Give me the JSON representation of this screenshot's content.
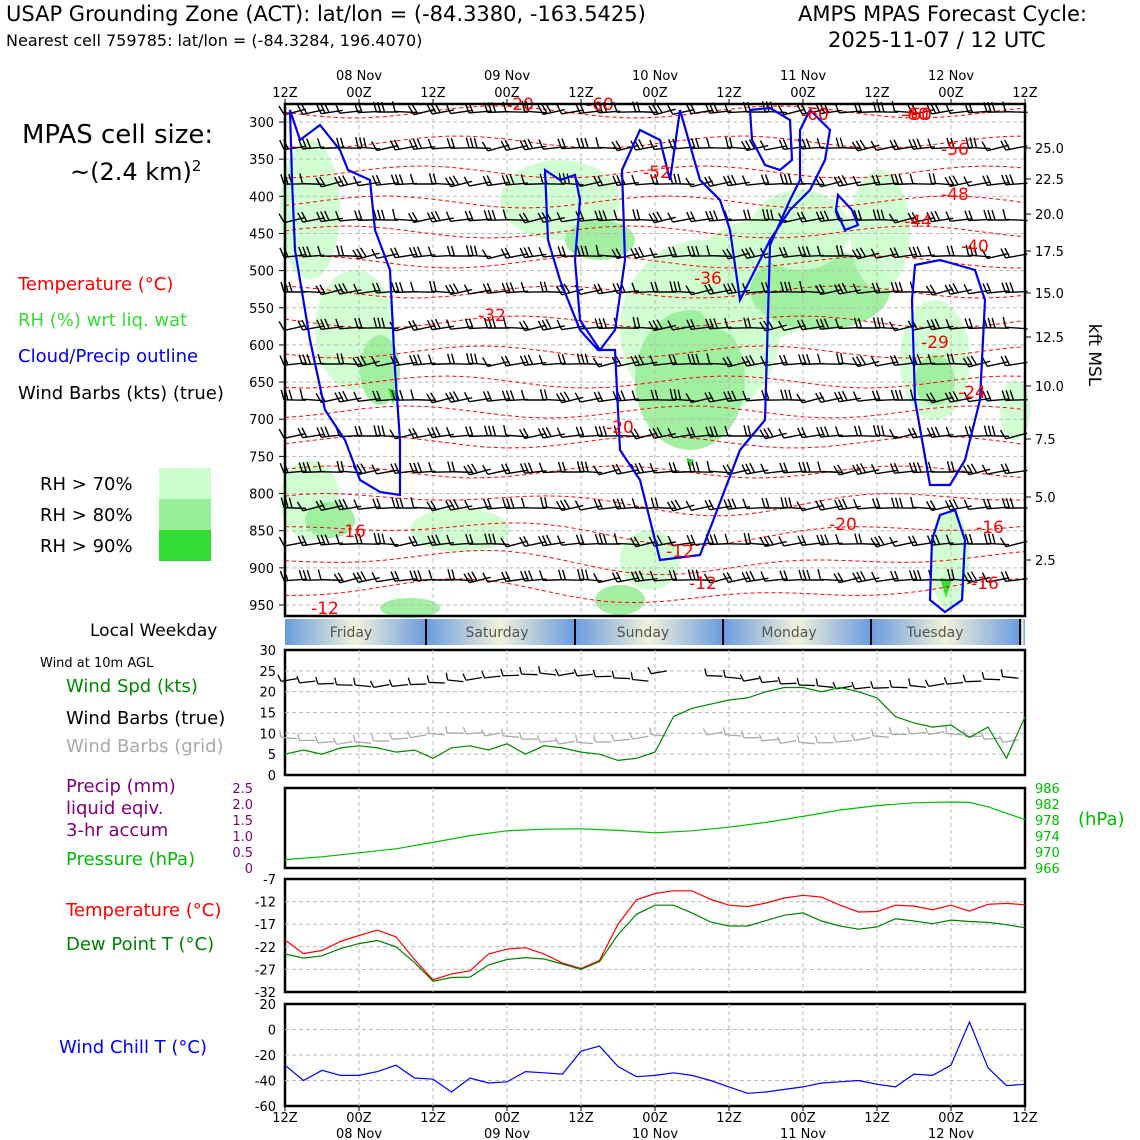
{
  "header": {
    "title_left": "USAP Grounding Zone (ACT): lat/lon = (-84.3380, -163.5425)",
    "subtitle_left": "Nearest cell 759785: lat/lon = (-84.3284, 196.4070)",
    "title_right_1": "AMPS MPAS Forecast Cycle:",
    "title_right_2": "2025-11-07 / 12 UTC"
  },
  "cell_size": {
    "line1": "MPAS cell size:",
    "line2": "~(2.4 km)",
    "sup": "2"
  },
  "legend": {
    "temperature": "Temperature (°C)",
    "rh": "RH (%) wrt liq. wat",
    "cloud": "Cloud/Precip outline",
    "wind_barbs": "Wind Barbs (kts) (true)",
    "rh70": "RH > 70%",
    "rh80": "RH > 80%",
    "rh90": "RH > 90%"
  },
  "colors": {
    "temperature": "#ff0000",
    "rh": "#33dd33",
    "cloud": "#0000ee",
    "precip": "#800080",
    "pressure": "#00bb00",
    "dewpoint": "#008000",
    "windchill": "#0000ff",
    "rh70": "#ccffcc",
    "rh80": "#99ee99",
    "rh90": "#33dd33",
    "grid_barb": "#aaaaaa"
  },
  "time_axis": {
    "ticks": [
      "12Z",
      "00Z",
      "12Z",
      "00Z",
      "12Z",
      "00Z",
      "12Z",
      "00Z",
      "12Z",
      "00Z",
      "12Z"
    ],
    "dates": [
      "08 Nov",
      "09 Nov",
      "10 Nov",
      "11 Nov",
      "12 Nov"
    ]
  },
  "weekday": {
    "label": "Local Weekday",
    "days": [
      "Friday",
      "Saturday",
      "Sunday",
      "Monday",
      "Tuesday"
    ]
  },
  "chart_data": [
    {
      "type": "heatmap",
      "name": "vertical-cross-section",
      "y_left_label": "",
      "y_left_ticks": [
        300,
        350,
        400,
        450,
        500,
        550,
        600,
        650,
        700,
        750,
        800,
        850,
        900,
        950
      ],
      "y_right_label": "kft MSL",
      "y_right_ticks": [
        "25.0",
        "22.5",
        "20.0",
        "17.5",
        "15.0",
        "12.5",
        "10.0",
        "7.5",
        "5.0",
        "2.5"
      ],
      "temperature_labels": [
        "-60",
        "-56",
        "-52",
        "-48",
        "-44",
        "-40",
        "-36",
        "-32",
        "-29",
        "-24",
        "-20",
        "-16",
        "-12",
        "-20",
        "-12",
        "-16",
        "-16",
        "-12",
        "-20",
        "-60",
        "-60",
        "-60"
      ]
    },
    {
      "type": "line",
      "name": "surface-wind",
      "title": "Wind at 10m AGL",
      "labels": [
        "Wind Spd (kts)",
        "Wind Barbs (true)",
        "Wind Barbs (grid)"
      ],
      "y_ticks": [
        "0",
        "5",
        "10",
        "15",
        "20",
        "25",
        "30"
      ],
      "ylim": [
        0,
        30
      ],
      "x": [
        0,
        3,
        6,
        9,
        12,
        15,
        18,
        21,
        24,
        27,
        30,
        33,
        36,
        39,
        42,
        45,
        48,
        51,
        54,
        57,
        60,
        63,
        66,
        69,
        72,
        75,
        78,
        81,
        84,
        87,
        90,
        93,
        96,
        99,
        102,
        105,
        108,
        111,
        114,
        117,
        120
      ],
      "series": [
        {
          "name": "Wind Spd (kts)",
          "values": [
            5,
            6,
            5,
            6.5,
            7,
            6.5,
            5.5,
            6,
            4,
            6.5,
            7,
            6,
            7.5,
            5,
            7,
            6.5,
            5.5,
            5,
            3.5,
            4,
            5.5,
            14,
            16,
            17,
            18,
            18.5,
            20,
            21,
            21,
            20,
            21,
            20,
            18.5,
            14,
            12.5,
            11.5,
            12,
            9,
            11.5,
            4,
            14
          ]
        }
      ]
    },
    {
      "type": "line",
      "name": "precip-pressure",
      "labels": [
        "Precip (mm)",
        "liquid eqiv.",
        "3-hr accum",
        "Pressure (hPa)"
      ],
      "y_left_ticks": [
        "0",
        "0.5",
        "1.0",
        "1.5",
        "2.0",
        "2.5"
      ],
      "y_right_ticks": [
        "966",
        "970",
        "974",
        "978",
        "982",
        "986"
      ],
      "y_right_unit": "(hPa)",
      "ylim_pressure": [
        966,
        986
      ],
      "x": [
        0,
        6,
        12,
        18,
        24,
        30,
        36,
        42,
        48,
        54,
        60,
        66,
        72,
        78,
        84,
        90,
        96,
        102,
        108,
        111,
        114,
        120
      ],
      "series": [
        {
          "name": "Pressure (hPa)",
          "values": [
            968.1,
            968.8,
            969.8,
            970.8,
            972.4,
            974.1,
            975.3,
            975.7,
            975.8,
            975.4,
            974.8,
            975.3,
            976.2,
            977.4,
            978.9,
            980.5,
            981.6,
            982.3,
            982.5,
            982.4,
            981.3,
            978.1
          ]
        },
        {
          "name": "Precip (mm)",
          "values": [
            0,
            0,
            0,
            0,
            0,
            0,
            0,
            0,
            0,
            0,
            0,
            0,
            0,
            0,
            0,
            0,
            0,
            0,
            0,
            0,
            0,
            0
          ]
        }
      ]
    },
    {
      "type": "line",
      "name": "temperature-dewpoint",
      "labels": [
        "Temperature (°C)",
        "Dew Point T (°C)"
      ],
      "y_ticks": [
        "-7",
        "-12",
        "-17",
        "-22",
        "-27",
        "-32"
      ],
      "ylim": [
        -32,
        -7
      ],
      "x": [
        0,
        3,
        6,
        9,
        12,
        15,
        18,
        21,
        24,
        27,
        30,
        33,
        36,
        39,
        42,
        45,
        48,
        51,
        54,
        57,
        60,
        63,
        66,
        69,
        72,
        75,
        78,
        81,
        84,
        87,
        90,
        93,
        96,
        99,
        102,
        105,
        108,
        111,
        114,
        117,
        120
      ],
      "series": [
        {
          "name": "Temperature (°C)",
          "values": [
            -20.5,
            -23.5,
            -22.8,
            -20.8,
            -19.5,
            -18.3,
            -19.8,
            -24.8,
            -29.3,
            -28,
            -27.3,
            -23.6,
            -22.5,
            -22.2,
            -23.6,
            -25.6,
            -26.8,
            -25,
            -17,
            -11.6,
            -10.2,
            -9.6,
            -9.6,
            -11.5,
            -12.8,
            -13.1,
            -12.3,
            -11.2,
            -10.6,
            -11,
            -12.8,
            -14.3,
            -14.2,
            -12.8,
            -13,
            -13.8,
            -12.8,
            -14.1,
            -12.6,
            -12.4,
            -12.7
          ]
        },
        {
          "name": "Dew Point T (°C)",
          "values": [
            -23.6,
            -24.5,
            -24,
            -22.4,
            -21.3,
            -20.6,
            -22,
            -25.5,
            -29.6,
            -28.8,
            -28.7,
            -26,
            -24.8,
            -24.4,
            -24.7,
            -25.8,
            -27,
            -25.3,
            -19.3,
            -14.8,
            -12.8,
            -12.8,
            -14.5,
            -16.5,
            -17.4,
            -17.4,
            -16.2,
            -15,
            -14.5,
            -16.3,
            -17.4,
            -18.1,
            -17.6,
            -15.8,
            -16.3,
            -16.9,
            -16.1,
            -16.4,
            -16.6,
            -17.1,
            -17.8
          ]
        }
      ]
    },
    {
      "type": "line",
      "name": "wind-chill",
      "labels": [
        "Wind Chill T (°C)"
      ],
      "y_ticks": [
        "20",
        "0",
        "-20",
        "-40",
        "-60"
      ],
      "ylim": [
        -60,
        20
      ],
      "x": [
        0,
        3,
        6,
        9,
        12,
        15,
        18,
        21,
        24,
        27,
        30,
        33,
        36,
        39,
        42,
        45,
        48,
        51,
        54,
        57,
        60,
        63,
        66,
        69,
        72,
        75,
        78,
        81,
        84,
        87,
        90,
        93,
        96,
        99,
        102,
        105,
        108,
        111,
        114,
        117,
        120
      ],
      "series": [
        {
          "name": "Wind Chill T (°C)",
          "values": [
            -28,
            -40,
            -32,
            -36,
            -36,
            -33,
            -28,
            -38,
            -39,
            -49,
            -38,
            -42,
            -41,
            -33,
            -34,
            -35,
            -17,
            -13,
            -29,
            -37,
            -36,
            -34,
            -36,
            -40,
            -45,
            -50,
            -49,
            -47,
            -45,
            -42,
            -41,
            -40,
            -43,
            -45,
            -35,
            -36,
            -28,
            6,
            -30,
            -44,
            -43
          ]
        }
      ]
    }
  ]
}
